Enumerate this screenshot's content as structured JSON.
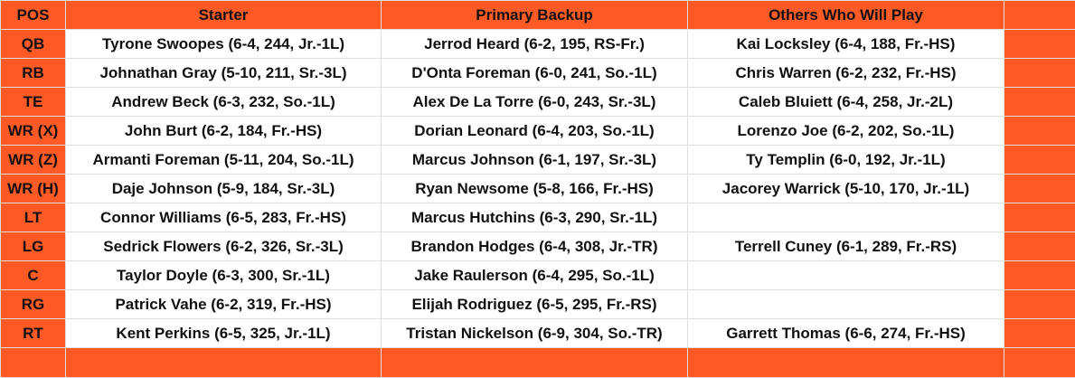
{
  "headers": [
    "POS",
    "Starter",
    "Primary Backup",
    "Others Who Will Play"
  ],
  "rows": [
    {
      "pos": "QB",
      "starter": "Tyrone Swoopes (6-4, 244, Jr.-1L)",
      "backup": "Jerrod Heard (6-2, 195, RS-Fr.)",
      "others": "Kai Locksley (6-4, 188, Fr.-HS)"
    },
    {
      "pos": "RB",
      "starter": "Johnathan Gray (5-10, 211, Sr.-3L)",
      "backup": "D'Onta Foreman (6-0, 241, So.-1L)",
      "others": "Chris Warren (6-2, 232, Fr.-HS)"
    },
    {
      "pos": "TE",
      "starter": "Andrew Beck (6-3, 232, So.-1L)",
      "backup": "Alex De La Torre (6-0, 243, Sr.-3L)",
      "others": "Caleb Bluiett (6-4, 258, Jr.-2L)"
    },
    {
      "pos": "WR (X)",
      "starter": "John Burt (6-2, 184, Fr.-HS)",
      "backup": "Dorian Leonard (6-4, 203, So.-1L)",
      "others": "Lorenzo Joe (6-2, 202, So.-1L)"
    },
    {
      "pos": "WR (Z)",
      "starter": "Armanti Foreman (5-11, 204, So.-1L)",
      "backup": "Marcus Johnson (6-1, 197, Sr.-3L)",
      "others": "Ty Templin (6-0, 192, Jr.-1L)"
    },
    {
      "pos": "WR (H)",
      "starter": "Daje Johnson (5-9, 184, Sr.-3L)",
      "backup": "Ryan Newsome (5-8, 166, Fr.-HS)",
      "others": "Jacorey Warrick (5-10, 170, Jr.-1L)"
    },
    {
      "pos": "LT",
      "starter": "Connor Williams (6-5, 283, Fr.-HS)",
      "backup": "Marcus Hutchins (6-3, 290, Sr.-1L)",
      "others": ""
    },
    {
      "pos": "LG",
      "starter": "Sedrick Flowers (6-2, 326, Sr.-3L)",
      "backup": "Brandon Hodges (6-4, 308, Jr.-TR)",
      "others": "Terrell Cuney (6-1, 289, Fr.-RS)"
    },
    {
      "pos": "C",
      "starter": "Taylor Doyle (6-3, 300, Sr.-1L)",
      "backup": "Jake Raulerson (6-4, 295, So.-1L)",
      "others": ""
    },
    {
      "pos": "RG",
      "starter": "Patrick Vahe (6-2, 319, Fr.-HS)",
      "backup": "Elijah Rodriguez (6-5, 295, Fr.-RS)",
      "others": ""
    },
    {
      "pos": "RT",
      "starter": "Kent Perkins (6-5, 325, Jr.-1L)",
      "backup": "Tristan Nickelson (6-9, 304, So.-TR)",
      "others": "Garrett Thomas (6-6, 274, Fr.-HS)"
    }
  ]
}
